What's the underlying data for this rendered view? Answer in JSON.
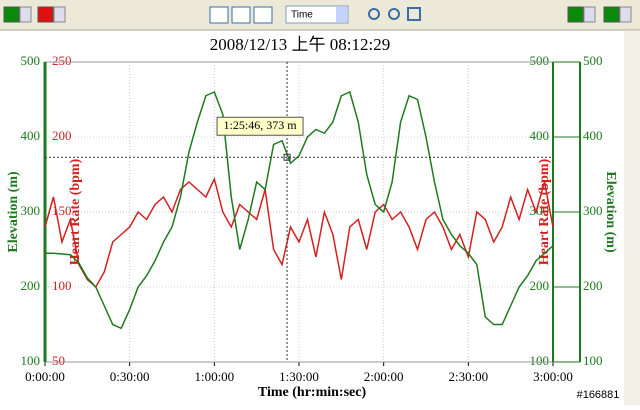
{
  "toolbar": {
    "time_select": "Time"
  },
  "watermark": "#166881",
  "chart_data": {
    "type": "line",
    "title": "2008/12/13 上午 08:12:29",
    "x_label": "Time (hr:min:sec)",
    "y_label": "Elevation (m)",
    "y2_label": "Heart Rate (bpm)",
    "x": [
      0,
      3,
      6,
      9,
      12,
      15,
      18,
      21,
      24,
      27,
      30,
      33,
      36,
      39,
      42,
      45,
      48,
      51,
      54,
      57,
      60,
      63,
      66,
      69,
      72,
      75,
      78,
      81,
      84,
      87,
      90,
      93,
      96,
      99,
      102,
      105,
      108,
      111,
      114,
      117,
      120,
      123,
      126,
      129,
      132,
      135,
      138,
      141,
      144,
      147,
      150,
      153,
      156,
      159,
      162,
      165,
      168,
      171,
      174,
      177,
      180
    ],
    "series": [
      {
        "name": "Elevation (m)",
        "color": "#1e7a1e",
        "axis": "y",
        "values": [
          245,
          245,
          244,
          243,
          232,
          212,
          200,
          175,
          150,
          145,
          170,
          200,
          215,
          235,
          260,
          280,
          320,
          380,
          420,
          455,
          460,
          430,
          320,
          250,
          290,
          340,
          330,
          390,
          395,
          365,
          375,
          400,
          410,
          405,
          420,
          455,
          460,
          420,
          350,
          310,
          300,
          340,
          420,
          455,
          450,
          400,
          340,
          290,
          270,
          255,
          245,
          230,
          160,
          150,
          150,
          175,
          200,
          215,
          235,
          245,
          255
        ]
      },
      {
        "name": "Heart Rate (bpm)",
        "color": "#d42020",
        "axis": "y2",
        "values": [
          140,
          160,
          130,
          145,
          115,
          105,
          100,
          110,
          130,
          135,
          140,
          150,
          145,
          155,
          160,
          150,
          165,
          170,
          165,
          160,
          172,
          150,
          140,
          155,
          150,
          145,
          165,
          125,
          115,
          140,
          130,
          145,
          120,
          150,
          135,
          105,
          140,
          145,
          125,
          150,
          155,
          145,
          150,
          140,
          125,
          145,
          150,
          140,
          125,
          135,
          120,
          150,
          145,
          130,
          140,
          160,
          145,
          165,
          150,
          170,
          140
        ]
      }
    ],
    "xlim": [
      0,
      180
    ],
    "xticks": [
      {
        "value": 0,
        "label": "0:00:00"
      },
      {
        "value": 30,
        "label": "0:30:00"
      },
      {
        "value": 60,
        "label": "1:00:00"
      },
      {
        "value": 90,
        "label": "1:30:00"
      },
      {
        "value": 120,
        "label": "2:00:00"
      },
      {
        "value": 150,
        "label": "2:30:00"
      },
      {
        "value": 180,
        "label": "3:00:00"
      }
    ],
    "ylim": [
      100,
      500
    ],
    "yticks": [
      100,
      200,
      300,
      400,
      500
    ],
    "y2lim": [
      50,
      250
    ],
    "y2ticks": [
      50,
      100,
      150,
      200,
      250
    ],
    "grid": true,
    "cursor": {
      "x": 85.77,
      "y": 373,
      "label": "1:25:46, 373 m"
    }
  }
}
